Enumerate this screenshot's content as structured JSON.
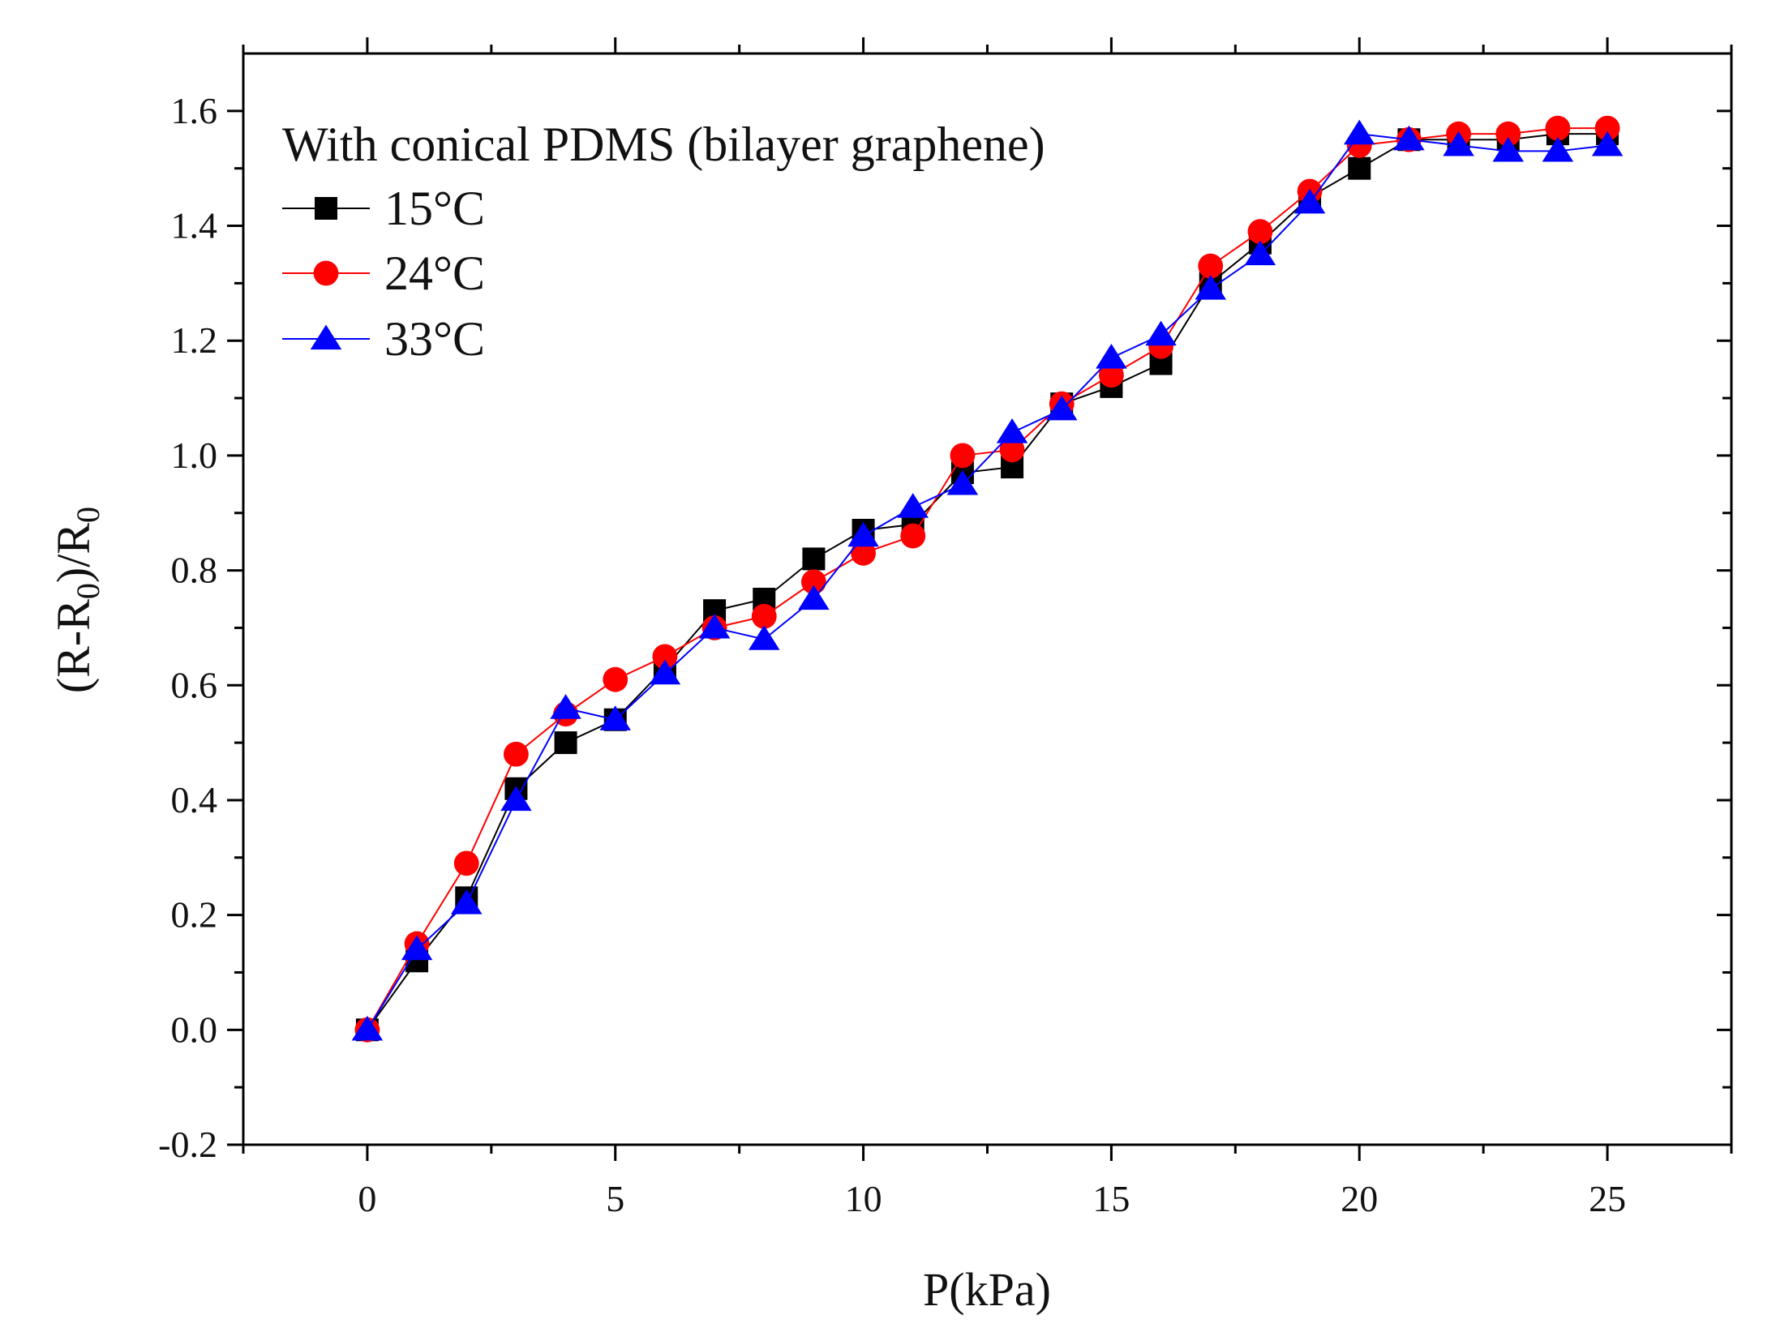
{
  "chart_data": {
    "type": "line",
    "title": "",
    "xlabel": "P(kPa)",
    "ylabel_parts": [
      "(R-R",
      "0",
      ")/R",
      "0"
    ],
    "xlim": [
      -2.5,
      27.5
    ],
    "ylim": [
      -0.2,
      1.7
    ],
    "x_ticks": [
      0,
      5,
      10,
      15,
      20,
      25
    ],
    "x_tick_labels": [
      "0",
      "5",
      "10",
      "15",
      "20",
      "25"
    ],
    "y_ticks": [
      -0.2,
      0.0,
      0.2,
      0.4,
      0.6,
      0.8,
      1.0,
      1.2,
      1.4,
      1.6
    ],
    "y_tick_labels": [
      "-0.2",
      "0.0",
      "0.2",
      "0.4",
      "0.6",
      "0.8",
      "1.0",
      "1.2",
      "1.4",
      "1.6"
    ],
    "grid": false,
    "legend_title": "With conical PDMS (bilayer graphene)",
    "legend_position": "top-left",
    "x": [
      0,
      1,
      2,
      3,
      4,
      5,
      6,
      7,
      8,
      9,
      10,
      11,
      12,
      13,
      14,
      15,
      16,
      17,
      18,
      19,
      20,
      21,
      22,
      23,
      24,
      25
    ],
    "series": [
      {
        "name": "15°C",
        "color": "#000000",
        "marker": "square",
        "values": [
          0.0,
          0.12,
          0.23,
          0.42,
          0.5,
          0.54,
          0.63,
          0.73,
          0.75,
          0.82,
          0.87,
          0.88,
          0.97,
          0.98,
          1.09,
          1.12,
          1.16,
          1.3,
          1.37,
          1.45,
          1.5,
          1.55,
          1.55,
          1.55,
          1.56,
          1.56
        ]
      },
      {
        "name": "24°C",
        "color": "#ff0000",
        "marker": "circle",
        "values": [
          0.0,
          0.15,
          0.29,
          0.48,
          0.55,
          0.61,
          0.65,
          0.7,
          0.72,
          0.78,
          0.83,
          0.86,
          1.0,
          1.01,
          1.09,
          1.14,
          1.19,
          1.33,
          1.39,
          1.46,
          1.54,
          1.55,
          1.56,
          1.56,
          1.57,
          1.57
        ]
      },
      {
        "name": "33°C",
        "color": "#0000ff",
        "marker": "triangle",
        "values": [
          0.0,
          0.14,
          0.22,
          0.4,
          0.56,
          0.54,
          0.62,
          0.7,
          0.68,
          0.75,
          0.86,
          0.91,
          0.95,
          1.04,
          1.08,
          1.17,
          1.21,
          1.29,
          1.35,
          1.44,
          1.56,
          1.55,
          1.54,
          1.53,
          1.53,
          1.54
        ]
      }
    ]
  }
}
